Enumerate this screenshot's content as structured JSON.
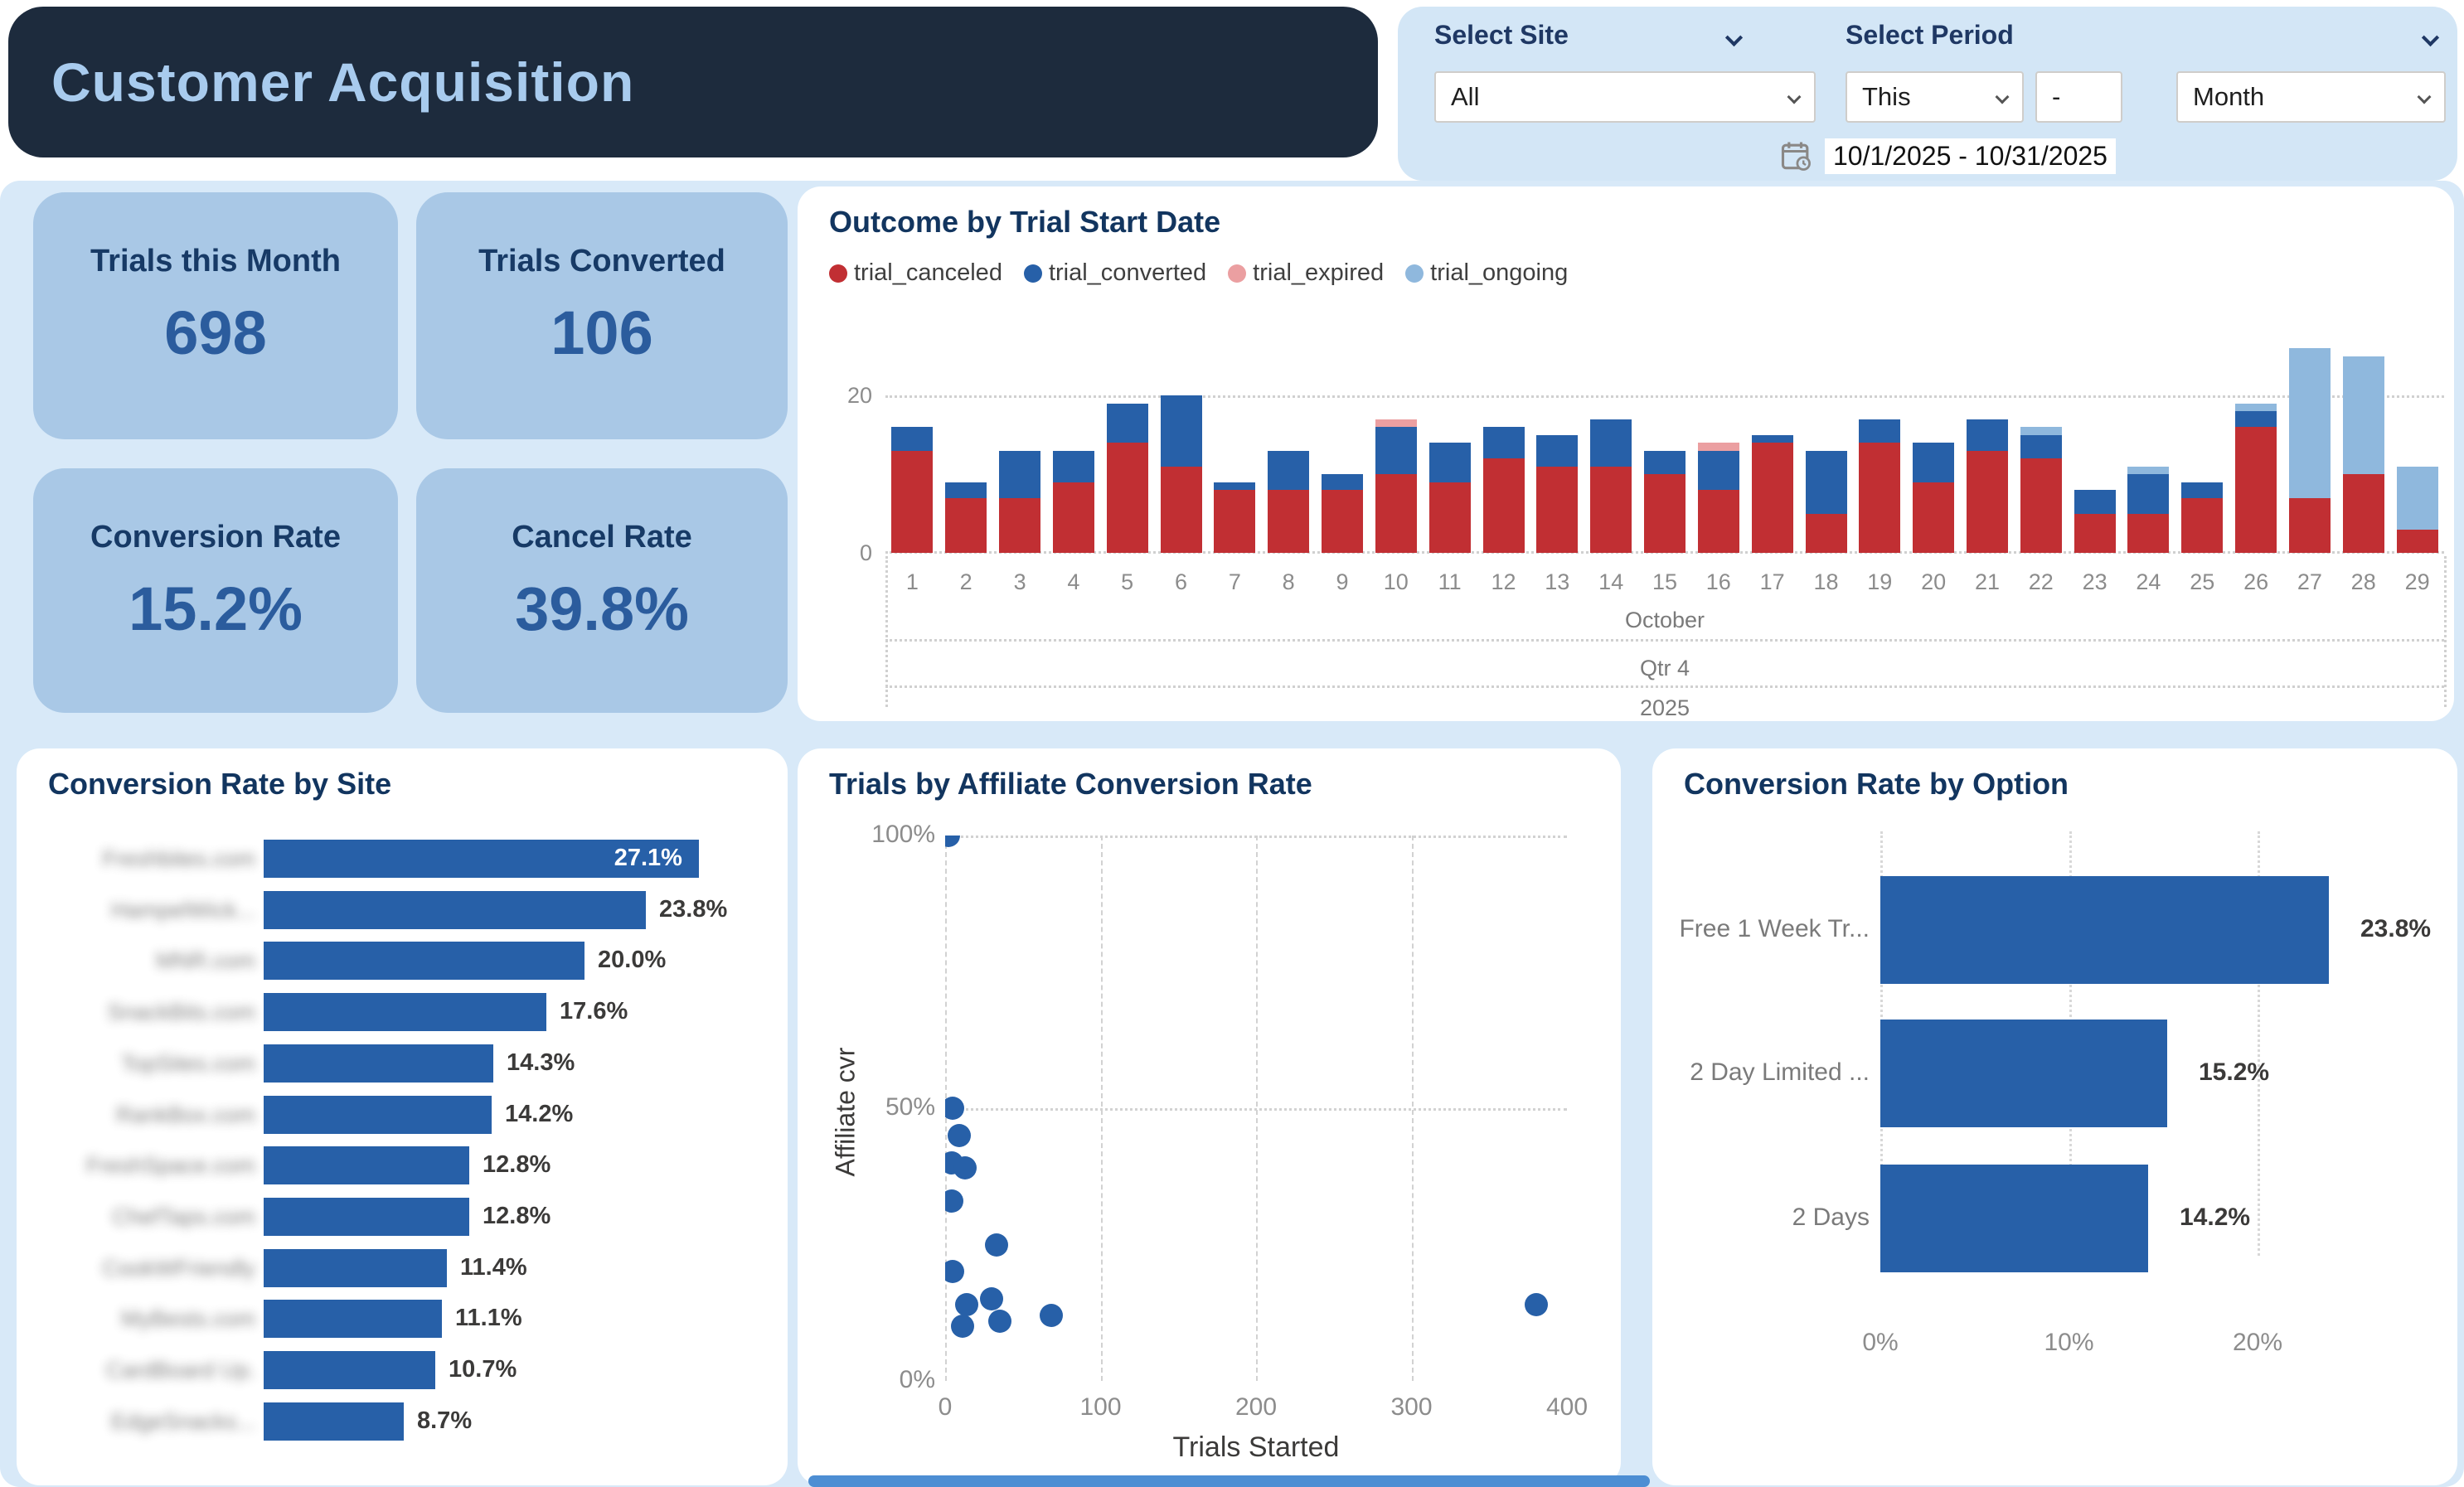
{
  "header": {
    "title": "Customer Acquisition"
  },
  "filters": {
    "site": {
      "label": "Select Site",
      "value": "All"
    },
    "period": {
      "label": "Select Period",
      "value_modifier": "This",
      "separator": "-",
      "value_unit": "Month",
      "date_range": "10/1/2025 - 10/31/2025"
    },
    "icons": {
      "calendar": "calendar-clock-icon",
      "chevron": "chevron-down-icon"
    }
  },
  "kpis": [
    {
      "label": "Trials this Month",
      "value": "698"
    },
    {
      "label": "Trials Converted",
      "value": "106"
    },
    {
      "label": "Conversion Rate",
      "value": "15.2%"
    },
    {
      "label": "Cancel Rate",
      "value": "39.8%"
    }
  ],
  "chart_data": [
    {
      "id": "outcome",
      "type": "bar",
      "stacked": true,
      "title": "Outcome by Trial Start Date",
      "legend_position": "top",
      "grid": "horizontal-dotted",
      "categories": [
        1,
        2,
        3,
        4,
        5,
        6,
        7,
        8,
        9,
        10,
        11,
        12,
        13,
        14,
        15,
        16,
        17,
        18,
        19,
        20,
        21,
        22,
        23,
        24,
        25,
        26,
        27,
        28,
        29
      ],
      "x_hierarchy": {
        "month": "October",
        "quarter": "Qtr 4",
        "year": "2025"
      },
      "y_ticks": [
        "0",
        "20"
      ],
      "ylim": [
        0,
        26
      ],
      "series": [
        {
          "name": "trial_canceled",
          "color": "#c12f33",
          "values": [
            13,
            7,
            7,
            9,
            14,
            11,
            8,
            8,
            8,
            10,
            9,
            12,
            11,
            11,
            10,
            8,
            14,
            5,
            14,
            9,
            13,
            12,
            5,
            5,
            7,
            16,
            7,
            10,
            3
          ]
        },
        {
          "name": "trial_converted",
          "color": "#2760a8",
          "values": [
            3,
            2,
            6,
            4,
            5,
            9,
            1,
            5,
            2,
            6,
            5,
            4,
            4,
            6,
            3,
            5,
            1,
            8,
            3,
            5,
            4,
            3,
            3,
            5,
            2,
            2,
            0,
            0,
            0
          ]
        },
        {
          "name": "trial_expired",
          "color": "#eb9fa1",
          "values": [
            0,
            0,
            0,
            0,
            0,
            0,
            0,
            0,
            0,
            1,
            0,
            0,
            0,
            0,
            0,
            1,
            0,
            0,
            0,
            0,
            0,
            0,
            0,
            0,
            0,
            0,
            0,
            0,
            0
          ]
        },
        {
          "name": "trial_ongoing",
          "color": "#8fb8dd",
          "values": [
            0,
            0,
            0,
            0,
            0,
            0,
            0,
            0,
            0,
            0,
            0,
            0,
            0,
            0,
            0,
            0,
            0,
            0,
            0,
            0,
            0,
            1,
            0,
            1,
            0,
            1,
            19,
            15,
            8
          ]
        }
      ]
    },
    {
      "id": "site_cvr",
      "type": "bar",
      "orientation": "horizontal",
      "title": "Conversion Rate by Site",
      "categories_redacted": true,
      "categories": [
        "Freshbites.com",
        "HampelWick...",
        "MNR.com",
        "SnackBits.com",
        "TopSites.com",
        "RankBox.com",
        "FreshSpace.com",
        "ChefTaps.com",
        "CookWFriendly",
        "MyBests.com",
        "CardBoard Up.",
        "EdgeSnacks..."
      ],
      "values": [
        27.1,
        23.8,
        20.0,
        17.6,
        14.3,
        14.2,
        12.8,
        12.8,
        11.4,
        11.1,
        10.7,
        8.7
      ],
      "value_labels": [
        "27.1%",
        "23.8%",
        "20.0%",
        "17.6%",
        "14.3%",
        "14.2%",
        "12.8%",
        "12.8%",
        "11.4%",
        "11.1%",
        "10.7%",
        "8.7%"
      ],
      "bar_color": "#2760a8",
      "xlim": [
        0,
        27.1
      ]
    },
    {
      "id": "affiliate_scatter",
      "type": "scatter",
      "title": "Trials by Affiliate Conversion Rate",
      "xlabel": "Trials Started",
      "ylabel": "Affiliate cvr",
      "x_ticks": [
        "0",
        "100",
        "200",
        "300",
        "400"
      ],
      "y_ticks": [
        "0%",
        "50%",
        "100%"
      ],
      "xlim": [
        0,
        400
      ],
      "ylim": [
        0,
        100
      ],
      "grid": "dashed",
      "point_color": "#2760a8",
      "points": [
        [
          2,
          100
        ],
        [
          5,
          50
        ],
        [
          9,
          45
        ],
        [
          4,
          40
        ],
        [
          13,
          39
        ],
        [
          4,
          33
        ],
        [
          33,
          25
        ],
        [
          5,
          20
        ],
        [
          14,
          14
        ],
        [
          30,
          15
        ],
        [
          35,
          11
        ],
        [
          68,
          12
        ],
        [
          11,
          10
        ],
        [
          380,
          14
        ]
      ]
    },
    {
      "id": "option_cvr",
      "type": "bar",
      "orientation": "horizontal",
      "title": "Conversion Rate by Option",
      "categories": [
        "Free 1 Week Tr...",
        "2 Day Limited ...",
        "2 Days"
      ],
      "values": [
        23.8,
        15.2,
        14.2
      ],
      "value_labels": [
        "23.8%",
        "15.2%",
        "14.2%"
      ],
      "x_ticks": [
        "0%",
        "10%",
        "20%"
      ],
      "xlim": [
        0,
        26
      ],
      "bar_color": "#2760a8"
    }
  ]
}
